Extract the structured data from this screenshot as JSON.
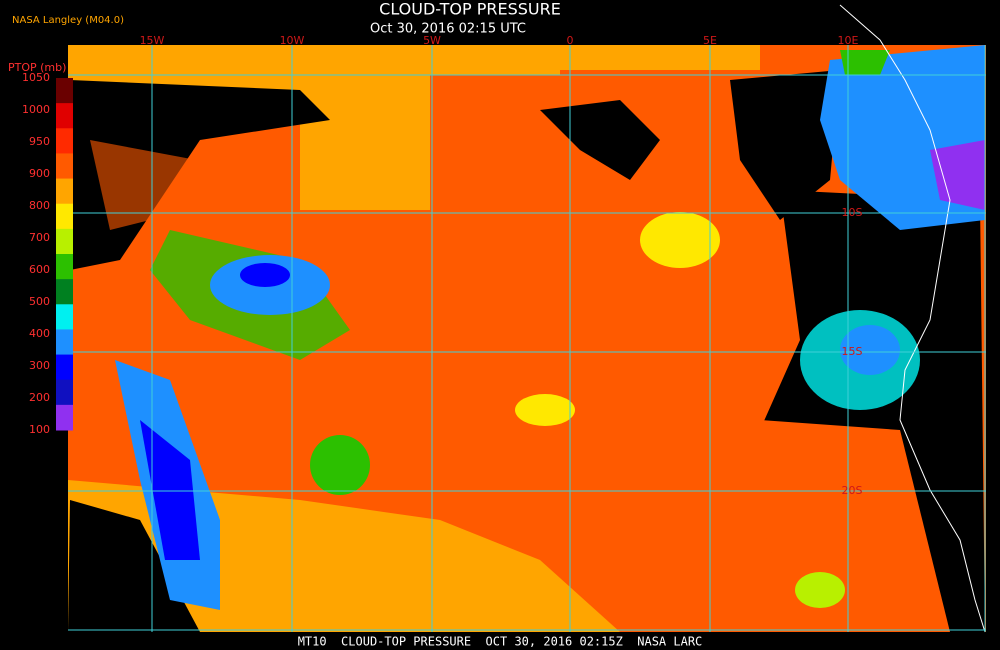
{
  "header": {
    "credit": "NASA Langley (M04.0)",
    "title": "CLOUD-TOP PRESSURE",
    "datetime": "Oct 30, 2016 02:15 UTC"
  },
  "colorbar": {
    "title": "PTOP (mb)",
    "labels": [
      "1050",
      "1000",
      "950",
      "900",
      "800",
      "700",
      "600",
      "500",
      "400",
      "300",
      "200",
      "100"
    ],
    "colors": [
      "#6a0000",
      "#e00000",
      "#ff2a00",
      "#ff5a00",
      "#ffa500",
      "#ffe800",
      "#b8f000",
      "#2cc000",
      "#008020",
      "#00f0f0",
      "#1e90ff",
      "#0000ff",
      "#1010c0",
      "#9030f0"
    ]
  },
  "map": {
    "longitude_labels": [
      "15W",
      "10W",
      "5W",
      "0",
      "5E",
      "10E"
    ],
    "latitude_labels": [
      "10S",
      "15S",
      "20S"
    ]
  },
  "footer": {
    "text": "MT10  CLOUD-TOP PRESSURE  OCT 30, 2016 02:15Z  NASA LARC"
  }
}
